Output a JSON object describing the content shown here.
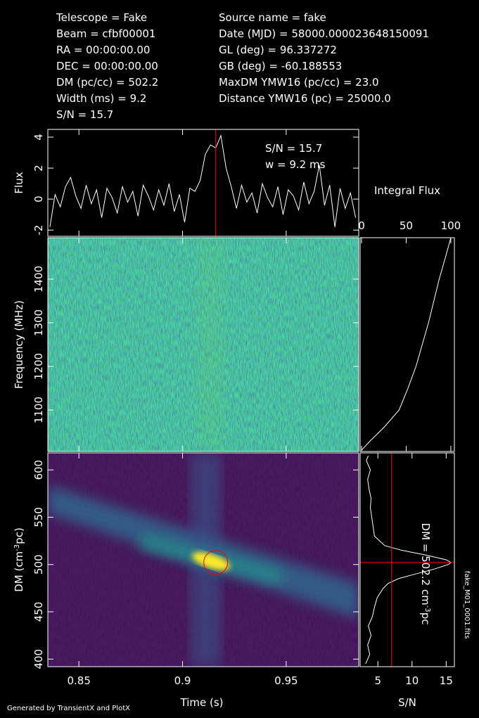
{
  "header": {
    "left": [
      "Telescope = Fake",
      "Beam = cfbf00001",
      "RA = 00:00:00.00",
      "DEC = 00:00:00.00",
      "DM (pc/cc) = 502.2",
      "Width (ms) = 9.2",
      "S/N = 15.7"
    ],
    "right": [
      "Source name = fake",
      "Date (MJD) = 58000.000023648150091",
      "GL (deg) = 96.337272",
      "GB (deg) = -60.188553",
      "MaxDM YMW16  (pc/cc) = 23.0",
      "Distance YMW16 (pc) = 25000.0"
    ]
  },
  "footer": "Generated by TransientX and PlotX",
  "file_label": "fake_M01_0001.fits",
  "chart_data": [
    {
      "type": "line",
      "y_label": "Flux",
      "x": [
        0.836,
        0.8385,
        0.841,
        0.8435,
        0.846,
        0.8485,
        0.851,
        0.8535,
        0.856,
        0.8585,
        0.861,
        0.8635,
        0.866,
        0.8685,
        0.871,
        0.8735,
        0.876,
        0.8785,
        0.881,
        0.8835,
        0.886,
        0.8885,
        0.891,
        0.8935,
        0.896,
        0.8985,
        0.901,
        0.9035,
        0.906,
        0.9085,
        0.911,
        0.9135,
        0.916,
        0.9185,
        0.921,
        0.9235,
        0.926,
        0.9285,
        0.931,
        0.9335,
        0.936,
        0.9385,
        0.941,
        0.9435,
        0.946,
        0.9485,
        0.951,
        0.9535,
        0.956,
        0.9585,
        0.961,
        0.9635,
        0.966,
        0.9685,
        0.971,
        0.9735,
        0.976,
        0.9785,
        0.981,
        0.9835
      ],
      "values": [
        -1.8,
        0.3,
        -0.5,
        0.8,
        1.4,
        0.2,
        -0.6,
        0.9,
        -0.3,
        0.6,
        -1.2,
        0.7,
        0.1,
        -0.9,
        0.8,
        -0.2,
        0.5,
        -1.1,
        0.9,
        0.2,
        -0.7,
        0.6,
        -0.4,
        1.0,
        -0.8,
        0.3,
        -1.5,
        0.7,
        0.5,
        1.2,
        2.9,
        3.5,
        3.3,
        4.1,
        2.0,
        0.8,
        -0.6,
        0.9,
        -0.2,
        0.4,
        -0.9,
        1.0,
        0.1,
        -0.5,
        0.8,
        -1.0,
        0.6,
        0.2,
        -0.7,
        1.1,
        -0.3,
        0.5,
        2.2,
        -0.4,
        0.9,
        -1.8,
        0.7,
        -0.6,
        0.4,
        -1.2
      ],
      "color": "#ffffff",
      "xlim": [
        0.835,
        0.985
      ],
      "ylim": [
        -2.4,
        4.5
      ],
      "yticks": [
        -2,
        0,
        2,
        4
      ],
      "annotations": [
        "S/N = 15.7",
        "w = 9.2 ms"
      ],
      "marker_x": 0.916,
      "marker_color": "#ff0000"
    },
    {
      "type": "heatmap",
      "y_label": "Frequency (MHz)",
      "xlim": [
        0.835,
        0.985
      ],
      "ylim": [
        1005,
        1495
      ],
      "yticks": [
        1100,
        1200,
        1300,
        1400
      ]
    },
    {
      "type": "hline",
      "x_label": "Integral Flux",
      "y": [
        1008,
        1030,
        1060,
        1100,
        1150,
        1200,
        1250,
        1300,
        1350,
        1400,
        1450,
        1495
      ],
      "values": [
        0,
        10,
        25,
        42,
        52,
        61,
        68,
        75,
        81,
        87,
        94,
        100
      ],
      "color": "#ffffff",
      "xlim": [
        -1.6,
        104
      ],
      "xticks": [
        0,
        50,
        100
      ],
      "ylim": [
        1005,
        1495
      ]
    },
    {
      "type": "heatmap",
      "x_label": "Time (s)",
      "y_label": [
        "DM (cm",
        "-3",
        "pc)"
      ],
      "xlim": [
        0.835,
        0.985
      ],
      "xticks": [
        0.85,
        0.9,
        0.95
      ],
      "ylim": [
        392,
        618
      ],
      "yticks": [
        400,
        450,
        500,
        550,
        600
      ],
      "marker": {
        "x": 0.916,
        "y": 502.2,
        "color": "#ff0000"
      }
    },
    {
      "type": "hline",
      "x_label": "S/N",
      "y": [
        395,
        405,
        415,
        425,
        435,
        445,
        455,
        465,
        475,
        480,
        485,
        490,
        495,
        500,
        502.2,
        505,
        510,
        515,
        520,
        530,
        540,
        550,
        560,
        570,
        580,
        590,
        600,
        610,
        615
      ],
      "values": [
        3.2,
        3.8,
        3.5,
        4.0,
        3.6,
        4.2,
        4.5,
        4.9,
        5.8,
        6.5,
        8.0,
        10.5,
        13.2,
        15.3,
        15.7,
        15.0,
        12.0,
        8.5,
        6.0,
        4.5,
        4.3,
        4.1,
        3.9,
        4.0,
        3.7,
        3.5,
        3.9,
        3.3,
        3.6
      ],
      "color": "#ffffff",
      "xlim": [
        2.4,
        16.2
      ],
      "xticks": [
        5,
        10,
        15
      ],
      "ylim": [
        392,
        618
      ],
      "threshold": 7,
      "marker_y": 502.2,
      "marker_color": "#ff0000",
      "annotation": [
        "DM = 502.2 cm",
        "-3",
        "pc"
      ]
    }
  ]
}
